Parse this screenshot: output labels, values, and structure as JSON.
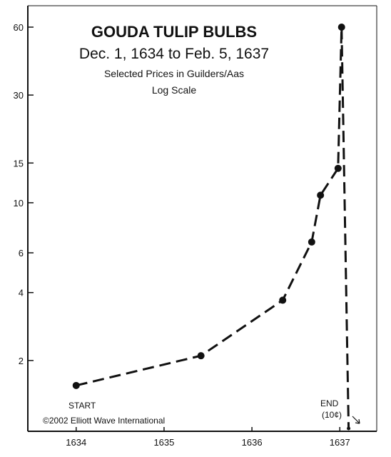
{
  "chart_data": {
    "type": "line",
    "title": "GOUDA TULIP BULBS",
    "subtitle": "Dec. 1, 1634 to Feb. 5, 1637",
    "subtitle2": "Selected Prices in Guilders/Aas",
    "subtitle3": "Log Scale",
    "y_scale": "log",
    "ylim": [
      1.0,
      65
    ],
    "xlim": [
      1633.45,
      1637.42
    ],
    "y_ticks": [
      2,
      4,
      6,
      10,
      15,
      30,
      60
    ],
    "x_ticks": [
      1634,
      1635,
      1636,
      1637
    ],
    "x_tick_labels": [
      "1634",
      "1635",
      "1636",
      "1637"
    ],
    "grid": false,
    "series": [
      {
        "x": [
          1634.0,
          1635.42,
          1636.35,
          1636.68,
          1636.78,
          1636.98,
          1637.02,
          1637.1
        ],
        "y": [
          1.55,
          2.1,
          3.7,
          6.7,
          10.8,
          14.2,
          60.0,
          1.0
        ]
      }
    ],
    "annotations": {
      "start": "START",
      "end": "END",
      "end_value": "(10¢)",
      "copyright": "©2002 Elliott Wave International"
    },
    "colors": {
      "line": "#111111",
      "axis": "#111111",
      "background": "#ffffff"
    }
  }
}
